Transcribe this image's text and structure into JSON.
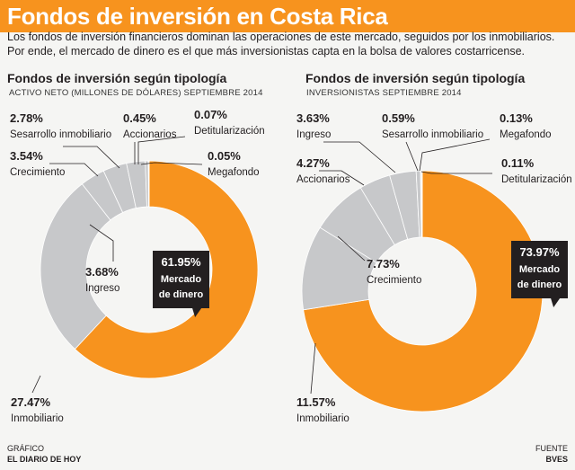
{
  "header": {
    "title": "Fondos de inversión en Costa Rica",
    "intro": "Los fondos de inversión financieros dominan las operaciones de este mercado, seguidos por los inmobiliarios. Por ende, el mercado de dinero es el que más inversionistas capta en la bolsa de valores costarricense."
  },
  "colors": {
    "accent": "#f7931e",
    "gray": "#c7c8ca",
    "dark": "#231f20"
  },
  "chart_data": [
    {
      "type": "pie",
      "title": "Fondos de inversión según tipología",
      "subtitle": "ACTIVO NETO (MILLONES DE DÓLARES) SEPTIEMBRE 2014",
      "slices": [
        {
          "name": "Mercado de dinero",
          "value": 61.95,
          "label": "61.95%",
          "line1": "Mercado",
          "line2": "de dinero"
        },
        {
          "name": "Inmobiliario",
          "value": 27.47,
          "label": "27.47%"
        },
        {
          "name": "Ingreso",
          "value": 3.68,
          "label": "3.68%"
        },
        {
          "name": "Crecimiento",
          "value": 3.54,
          "label": "3.54%"
        },
        {
          "name": "Sesarrollo inmobiliario",
          "value": 2.78,
          "label": "2.78%"
        },
        {
          "name": "Accionarios",
          "value": 0.45,
          "label": "0.45%"
        },
        {
          "name": "Detitularización",
          "value": 0.07,
          "label": "0.07%"
        },
        {
          "name": "Megafondo",
          "value": 0.05,
          "label": "0.05%"
        }
      ]
    },
    {
      "type": "pie",
      "title": "Fondos de inversión según tipología",
      "subtitle": "INVERSIONISTAS SEPTIEMBRE 2014",
      "slices": [
        {
          "name": "Mercado de dinero",
          "value": 73.97,
          "label": "73.97%",
          "line1": "Mercado",
          "line2": "de dinero"
        },
        {
          "name": "Inmobiliario",
          "value": 11.57,
          "label": "11.57%"
        },
        {
          "name": "Crecimiento",
          "value": 7.73,
          "label": "7.73%"
        },
        {
          "name": "Accionarios",
          "value": 4.27,
          "label": "4.27%"
        },
        {
          "name": "Ingreso",
          "value": 3.63,
          "label": "3.63%"
        },
        {
          "name": "Sesarrollo inmobiliario",
          "value": 0.59,
          "label": "0.59%"
        },
        {
          "name": "Megafondo",
          "value": 0.13,
          "label": "0.13%"
        },
        {
          "name": "Detitularización",
          "value": 0.11,
          "label": "0.11%"
        }
      ]
    }
  ],
  "footer": {
    "credit_label": "GRÁFICO",
    "credit": "EL DIARIO DE HOY",
    "source_label": "FUENTE",
    "source": "BVES"
  }
}
